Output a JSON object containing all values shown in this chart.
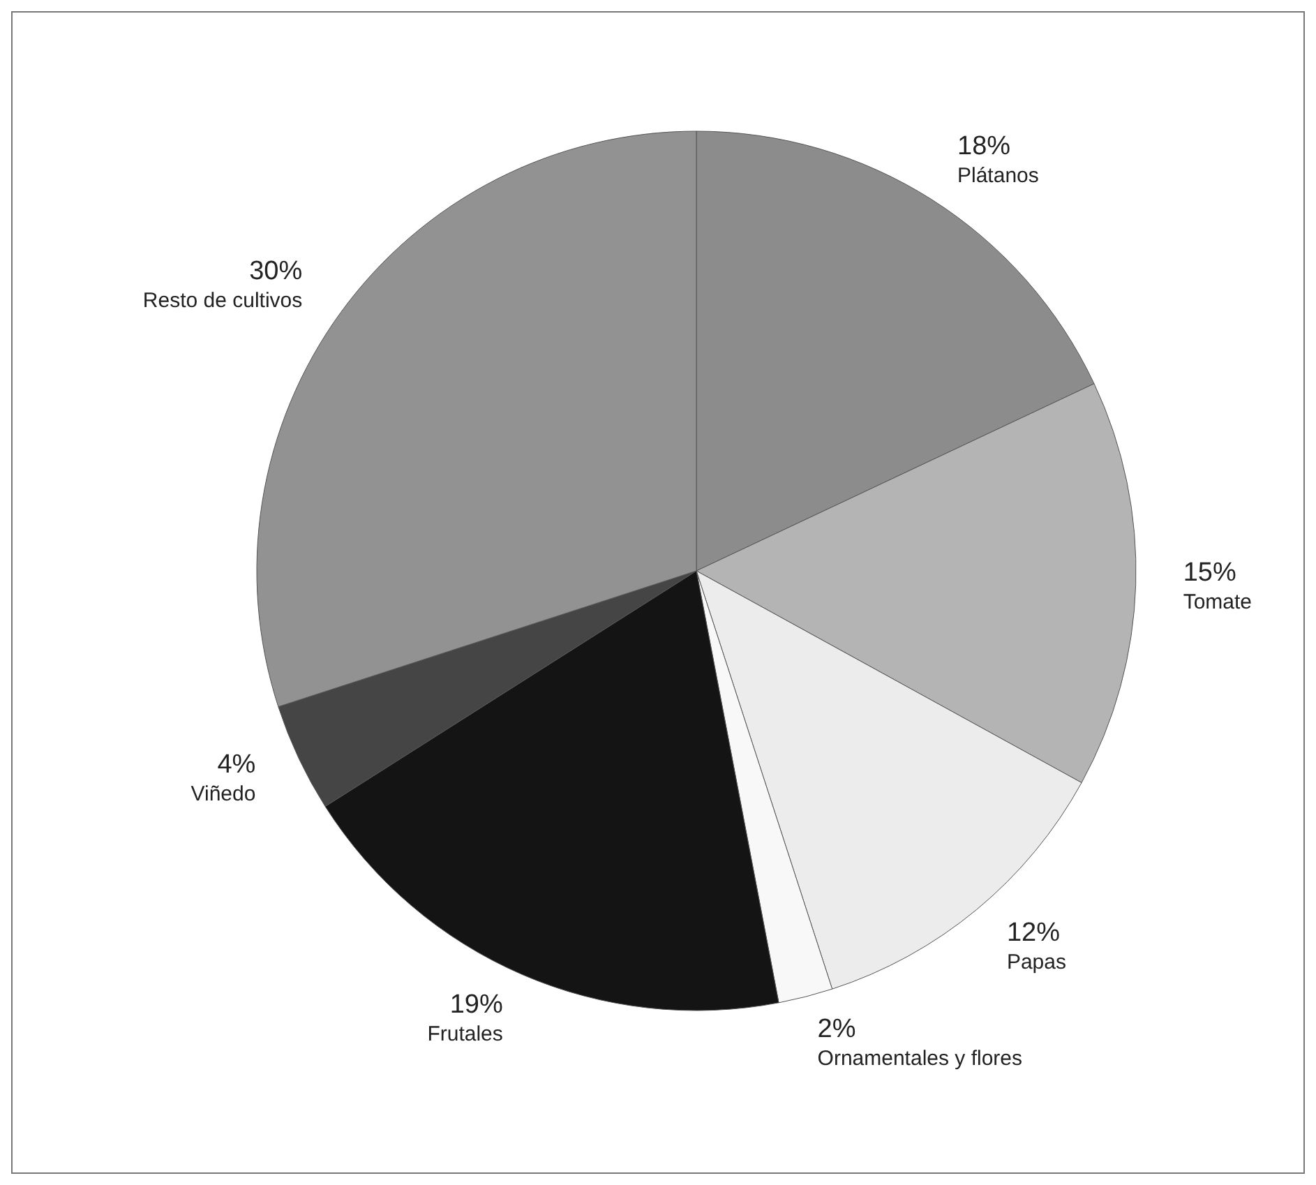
{
  "chart_data": {
    "type": "pie",
    "categories": [
      "Plátanos",
      "Tomate",
      "Papas",
      "Ornamentales y flores",
      "Frutales",
      "Viñedo",
      "Resto de cultivos"
    ],
    "values": [
      18,
      15,
      12,
      2,
      19,
      4,
      30
    ],
    "value_labels": [
      "18%",
      "15%",
      "12%",
      "2%",
      "19%",
      "4%",
      "30%"
    ],
    "colors": [
      "#8c8c8c",
      "#b4b4b4",
      "#ececec",
      "#f8f8f8",
      "#141414",
      "#454545",
      "#929292"
    ],
    "legend": false
  }
}
